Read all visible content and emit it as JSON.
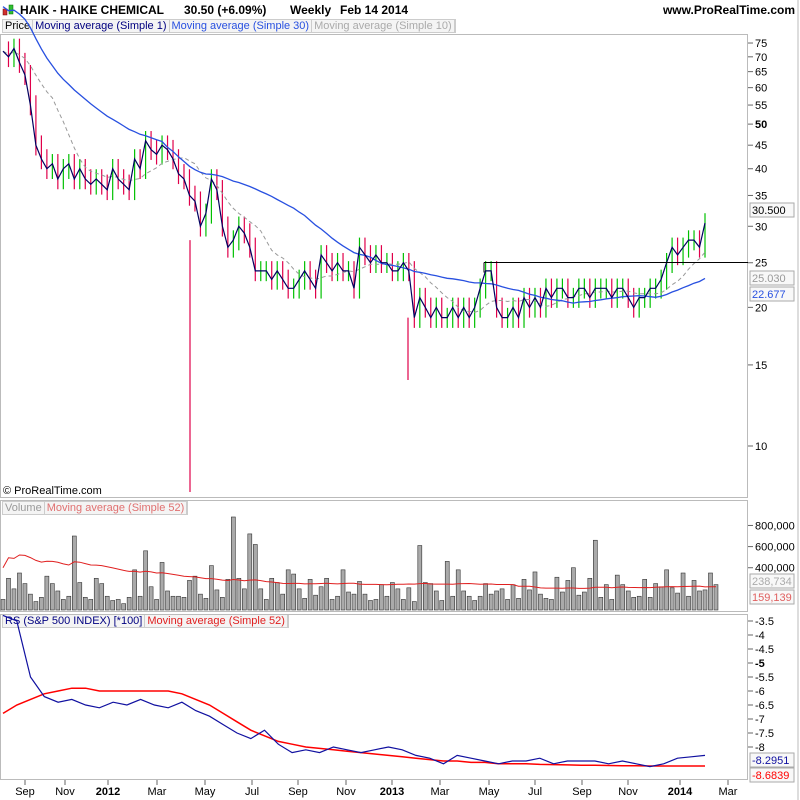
{
  "header": {
    "symbol": "HAIK - HAIKE CHEMICAL",
    "quote": "30.50 (+6.09%)",
    "period": "Weekly",
    "date": "Feb 14 2014",
    "site": "www.ProRealTime.com",
    "copyright": "© ProRealTime.com"
  },
  "legends": {
    "price": [
      "Price",
      "Moving average (Simple 1)",
      "Moving average (Simple 30)",
      "Moving average (Simple 10)"
    ],
    "volume": [
      "Volume",
      "Moving average (Simple 52)"
    ],
    "rs": [
      "RS (S&P 500 INDEX) [*100]",
      "Moving average (Simple 52)"
    ]
  },
  "colors": {
    "close": "#000060",
    "ma30": "#2850e0",
    "ma10": "#999999",
    "up": "#00c000",
    "down": "#e0004a",
    "vol_ma": "#e02020",
    "rs": "#1010a0",
    "rs_ma": "#ff0000"
  },
  "chart_data": [
    {
      "type": "line",
      "name": "price",
      "scale": "log",
      "ylim": [
        8,
        80
      ],
      "yticks": [
        75,
        70,
        65,
        60,
        55,
        50,
        45,
        40,
        35,
        30,
        25,
        20,
        15,
        10
      ],
      "xticks": [
        "Sep",
        "Nov",
        "2012",
        "Mar",
        "May",
        "Jul",
        "Sep",
        "Nov",
        "2013",
        "Mar",
        "May",
        "Jul",
        "Sep",
        "Nov",
        "2014",
        "Mar"
      ],
      "closes": [
        72,
        70,
        73,
        68,
        64,
        55,
        45,
        42,
        40,
        41,
        38,
        40,
        41,
        38,
        40,
        38,
        37,
        38,
        37,
        36,
        40,
        38,
        37,
        36,
        42,
        40,
        46,
        44,
        43,
        45,
        44,
        42,
        39,
        38,
        35,
        34,
        30,
        32,
        38,
        36,
        30,
        27,
        28,
        30,
        29,
        27,
        24,
        24,
        24,
        23,
        24,
        23,
        22,
        22,
        23,
        24,
        23,
        22,
        26,
        25,
        24,
        25,
        24,
        24,
        22,
        27,
        26,
        25,
        26,
        25,
        25,
        24,
        24,
        25,
        24,
        19,
        21,
        20,
        19,
        20,
        19,
        19,
        20,
        19,
        20,
        19,
        20,
        22,
        24,
        24,
        20,
        19,
        19,
        20,
        19,
        21,
        20,
        21,
        20,
        22,
        21,
        22,
        22,
        21,
        21,
        22,
        22,
        21,
        22,
        22,
        22,
        21,
        22,
        22,
        21,
        20,
        21,
        21,
        22,
        22,
        23,
        25,
        27,
        26,
        27,
        28,
        28,
        27,
        30.5
      ],
      "last_labels": {
        "close": "30.500",
        "level": "25.030",
        "ma30": "22.677"
      },
      "resistance": 25.03
    },
    {
      "type": "bar",
      "name": "volume",
      "yticks": [
        "800,000",
        "600,000",
        "400,000"
      ],
      "values": [
        100,
        300,
        200,
        350,
        250,
        150,
        80,
        120,
        320,
        250,
        180,
        100,
        130,
        700,
        260,
        120,
        100,
        300,
        250,
        130,
        90,
        100,
        60,
        120,
        380,
        130,
        560,
        220,
        100,
        450,
        180,
        130,
        130,
        120,
        280,
        320,
        150,
        110,
        420,
        190,
        120,
        290,
        880,
        300,
        200,
        720,
        620,
        200,
        100,
        300,
        260,
        150,
        380,
        340,
        200,
        110,
        290,
        140,
        220,
        300,
        100,
        130,
        380,
        170,
        150,
        270,
        150,
        90,
        100,
        240,
        130,
        260,
        200,
        100,
        210,
        80,
        610,
        260,
        250,
        180,
        90,
        460,
        130,
        380,
        180,
        130,
        90,
        130,
        250,
        150,
        180,
        200,
        100,
        240,
        110,
        290,
        190,
        360,
        150,
        110,
        100,
        310,
        170,
        280,
        400,
        140,
        170,
        300,
        660,
        120,
        240,
        100,
        330,
        240,
        180,
        120,
        130,
        290,
        120,
        250,
        220,
        380,
        210,
        160,
        350,
        130,
        280,
        180,
        190,
        350,
        240
      ],
      "last_labels": {
        "volume": "238,734",
        "ma": "159,139"
      }
    },
    {
      "type": "line",
      "name": "rs",
      "yticks": [
        "-3.5",
        "-4",
        "-4.5",
        "-5",
        "-5.5",
        "-6",
        "-6.5",
        "-7",
        "-7.5",
        "-8"
      ],
      "rs": [
        -3.3,
        -3.5,
        -5.5,
        -6.2,
        -6.4,
        -6.3,
        -6.5,
        -6.6,
        -6.4,
        -6.5,
        -6.3,
        -6.5,
        -6.6,
        -6.4,
        -6.7,
        -6.9,
        -7.2,
        -7.5,
        -7.7,
        -7.4,
        -7.9,
        -8.2,
        -8.1,
        -8.2,
        -8.0,
        -8.1,
        -8.2,
        -8.1,
        -8.0,
        -8.1,
        -8.3,
        -8.4,
        -8.6,
        -8.3,
        -8.4,
        -8.5,
        -8.6,
        -8.5,
        -8.5,
        -8.4,
        -8.6,
        -8.5,
        -8.5,
        -8.5,
        -8.6,
        -8.5,
        -8.6,
        -8.7,
        -8.6,
        -8.4,
        -8.35,
        -8.3
      ],
      "rs_ma": [
        -6.8,
        -6.5,
        -6.3,
        -6.1,
        -6.0,
        -5.9,
        -5.9,
        -6.0,
        -6.0,
        -6.0,
        -6.0,
        -6.0,
        -6.0,
        -6.1,
        -6.3,
        -6.5,
        -6.8,
        -7.1,
        -7.4,
        -7.6,
        -7.8,
        -7.9,
        -8.0,
        -8.05,
        -8.1,
        -8.15,
        -8.2,
        -8.25,
        -8.3,
        -8.35,
        -8.4,
        -8.45,
        -8.5,
        -8.5,
        -8.55,
        -8.55,
        -8.6,
        -8.6,
        -8.6,
        -8.62,
        -8.63,
        -8.64,
        -8.65,
        -8.65,
        -8.66,
        -8.67,
        -8.67,
        -8.68,
        -8.68,
        -8.68,
        -8.68,
        -8.68
      ],
      "last_labels": {
        "rs": "-8.2951",
        "ma": "-8.6839"
      }
    }
  ]
}
